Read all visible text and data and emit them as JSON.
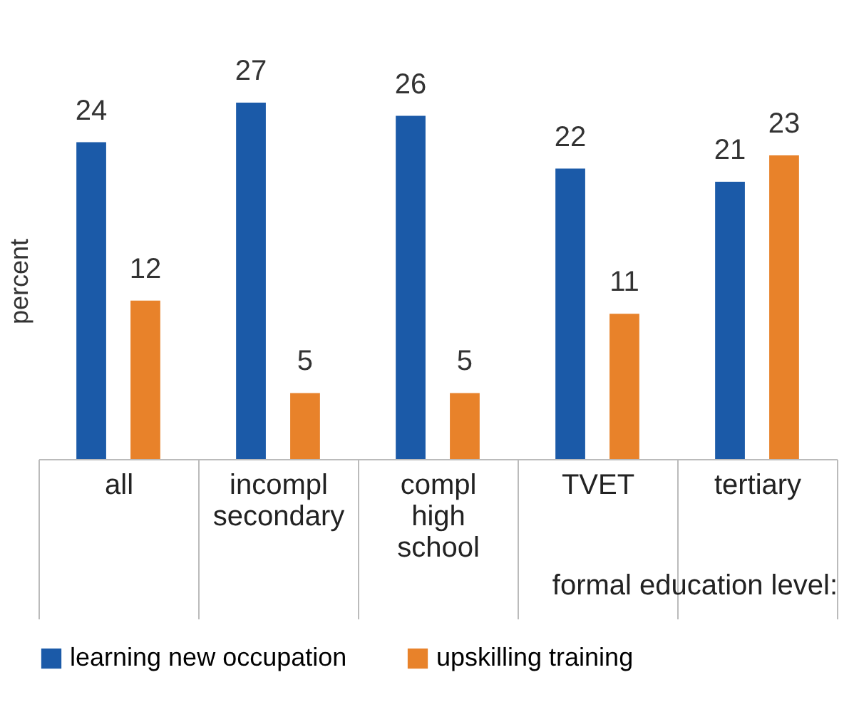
{
  "chart_data": {
    "type": "bar",
    "categories": [
      "all",
      "incompl secondary",
      "compl high school",
      "TVET",
      "tertiary"
    ],
    "series": [
      {
        "name": "learning new occupation",
        "color": "#1b5aa8",
        "values": [
          24,
          27,
          26,
          22,
          21
        ]
      },
      {
        "name": "upskilling training",
        "color": "#e8822a",
        "values": [
          12,
          5,
          5,
          11,
          23
        ]
      }
    ],
    "xlabel": "formal education level:",
    "ylabel": "percent",
    "tick_labels": "x",
    "data_labels": true,
    "grid": false,
    "legend": "bottom"
  }
}
